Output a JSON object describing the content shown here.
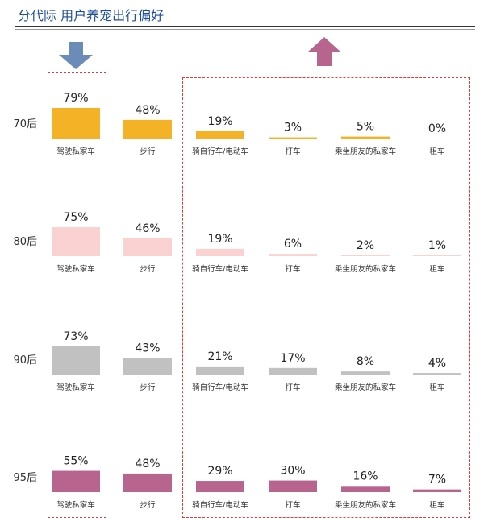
{
  "title": "分代际  用户养宠出行偏好",
  "colors": {
    "title": "#1f4e99",
    "dashed_box": "#e03a3a",
    "down_arrow": "#6b8bb8",
    "up_arrow": "#b7658f",
    "series": {
      "70后": "#f4b326",
      "80后": "#fad2d2",
      "90后": "#c1c1c1",
      "95后": "#b7658f"
    }
  },
  "icons": {
    "down_arrow": "down-arrow-icon",
    "up_arrow": "up-arrow-icon"
  },
  "chart_data": {
    "type": "bar",
    "title": "分代际  用户养宠出行偏好",
    "categories": [
      "驾驶私家车",
      "步行",
      "骑自行车/电动车",
      "打车",
      "乘坐朋友的私家车",
      "租车"
    ],
    "series": [
      {
        "name": "70后",
        "values": [
          79,
          48,
          19,
          3,
          5,
          0
        ]
      },
      {
        "name": "80后",
        "values": [
          75,
          46,
          19,
          6,
          2,
          1
        ]
      },
      {
        "name": "90后",
        "values": [
          73,
          43,
          21,
          17,
          8,
          4
        ]
      },
      {
        "name": "95后",
        "values": [
          55,
          48,
          29,
          30,
          16,
          7
        ]
      }
    ],
    "value_suffix": "%",
    "ylim": [
      0,
      100
    ],
    "grid": false,
    "legend": "none"
  }
}
